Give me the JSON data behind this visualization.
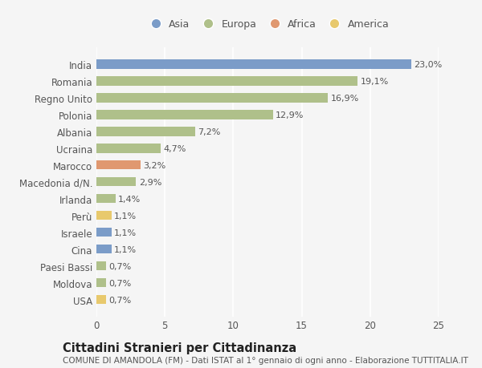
{
  "countries": [
    "India",
    "Romania",
    "Regno Unito",
    "Polonia",
    "Albania",
    "Ucraina",
    "Marocco",
    "Macedonia d/N.",
    "Irlanda",
    "Perù",
    "Israele",
    "Cina",
    "Paesi Bassi",
    "Moldova",
    "USA"
  ],
  "values": [
    23.0,
    19.1,
    16.9,
    12.9,
    7.2,
    4.7,
    3.2,
    2.9,
    1.4,
    1.1,
    1.1,
    1.1,
    0.7,
    0.7,
    0.7
  ],
  "labels": [
    "23,0%",
    "19,1%",
    "16,9%",
    "12,9%",
    "7,2%",
    "4,7%",
    "3,2%",
    "2,9%",
    "1,4%",
    "1,1%",
    "1,1%",
    "1,1%",
    "0,7%",
    "0,7%",
    "0,7%"
  ],
  "continents": [
    "Asia",
    "Europa",
    "Europa",
    "Europa",
    "Europa",
    "Europa",
    "Africa",
    "Europa",
    "Europa",
    "America",
    "Asia",
    "Asia",
    "Europa",
    "Europa",
    "America"
  ],
  "continent_colors": {
    "Asia": "#7b9cc8",
    "Europa": "#afc08a",
    "Africa": "#e09870",
    "America": "#e8c96d"
  },
  "legend_order": [
    "Asia",
    "Europa",
    "Africa",
    "America"
  ],
  "xlim": [
    0,
    25
  ],
  "xticks": [
    0,
    5,
    10,
    15,
    20,
    25
  ],
  "title": "Cittadini Stranieri per Cittadinanza",
  "subtitle": "COMUNE DI AMANDOLA (FM) - Dati ISTAT al 1° gennaio di ogni anno - Elaborazione TUTTITALIA.IT",
  "background_color": "#f5f5f5",
  "bar_height": 0.55,
  "grid_color": "#ffffff",
  "label_fontsize": 8.0,
  "ytick_fontsize": 8.5,
  "xtick_fontsize": 8.5,
  "title_fontsize": 10.5,
  "subtitle_fontsize": 7.5
}
